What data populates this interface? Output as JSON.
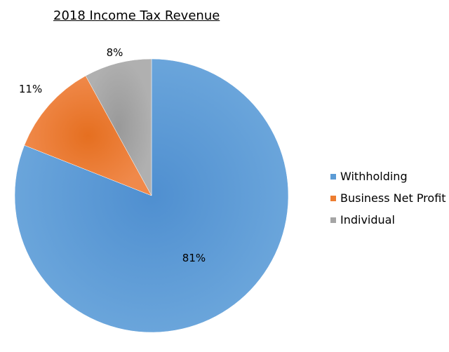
{
  "chart_data": {
    "type": "pie",
    "title": "2018 Income Tax Revenue",
    "categories": [
      "Withholding",
      "Business Net Profit",
      "Individual"
    ],
    "values": [
      81,
      11,
      8
    ],
    "data_labels": [
      "81%",
      "11%",
      "8%"
    ],
    "colors": [
      "#5b9bd5",
      "#ed7d31",
      "#a5a5a5"
    ],
    "legend_position": "right",
    "start_angle": "12 o'clock",
    "direction": "clockwise"
  }
}
